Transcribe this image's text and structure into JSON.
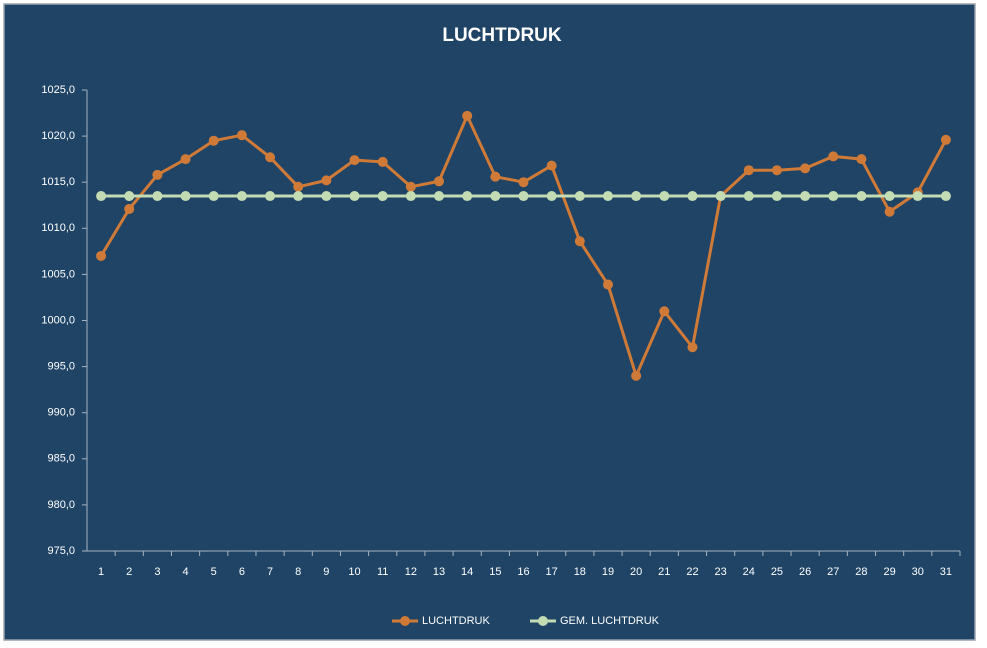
{
  "chart_data": {
    "type": "line",
    "title": "LUCHTDRUK",
    "categories": [
      "1",
      "2",
      "3",
      "4",
      "5",
      "6",
      "7",
      "8",
      "9",
      "10",
      "11",
      "12",
      "13",
      "14",
      "15",
      "16",
      "17",
      "18",
      "19",
      "20",
      "21",
      "22",
      "23",
      "24",
      "25",
      "26",
      "27",
      "28",
      "29",
      "30",
      "31"
    ],
    "series": [
      {
        "name": "LUCHTDRUK",
        "color": "#d07a38",
        "values": [
          1007.0,
          1012.1,
          1015.8,
          1017.5,
          1019.5,
          1020.1,
          1017.7,
          1014.5,
          1015.2,
          1017.4,
          1017.2,
          1014.5,
          1015.1,
          1022.2,
          1015.6,
          1015.0,
          1016.8,
          1008.6,
          1003.9,
          994.0,
          1001.0,
          997.1,
          1013.5,
          1016.3,
          1016.3,
          1016.5,
          1017.8,
          1017.5,
          1011.8,
          1013.9,
          1019.6
        ]
      },
      {
        "name": "GEM. LUCHTDRUK",
        "color": "#c3dcb4",
        "values": [
          1013.5,
          1013.5,
          1013.5,
          1013.5,
          1013.5,
          1013.5,
          1013.5,
          1013.5,
          1013.5,
          1013.5,
          1013.5,
          1013.5,
          1013.5,
          1013.5,
          1013.5,
          1013.5,
          1013.5,
          1013.5,
          1013.5,
          1013.5,
          1013.5,
          1013.5,
          1013.5,
          1013.5,
          1013.5,
          1013.5,
          1013.5,
          1013.5,
          1013.5,
          1013.5,
          1013.5
        ]
      }
    ],
    "ylim": [
      975,
      1025
    ],
    "yticks": [
      {
        "value": 975,
        "label": "975,0"
      },
      {
        "value": 980,
        "label": "980,0"
      },
      {
        "value": 985,
        "label": "985,0"
      },
      {
        "value": 990,
        "label": "990,0"
      },
      {
        "value": 995,
        "label": "995,0"
      },
      {
        "value": 1000,
        "label": "1000,0"
      },
      {
        "value": 1005,
        "label": "1005,0"
      },
      {
        "value": 1010,
        "label": "1010,0"
      },
      {
        "value": 1015,
        "label": "1015,0"
      },
      {
        "value": 1020,
        "label": "1020,0"
      },
      {
        "value": 1025,
        "label": "1025,0"
      }
    ],
    "grid": false,
    "legend": "bottom"
  }
}
